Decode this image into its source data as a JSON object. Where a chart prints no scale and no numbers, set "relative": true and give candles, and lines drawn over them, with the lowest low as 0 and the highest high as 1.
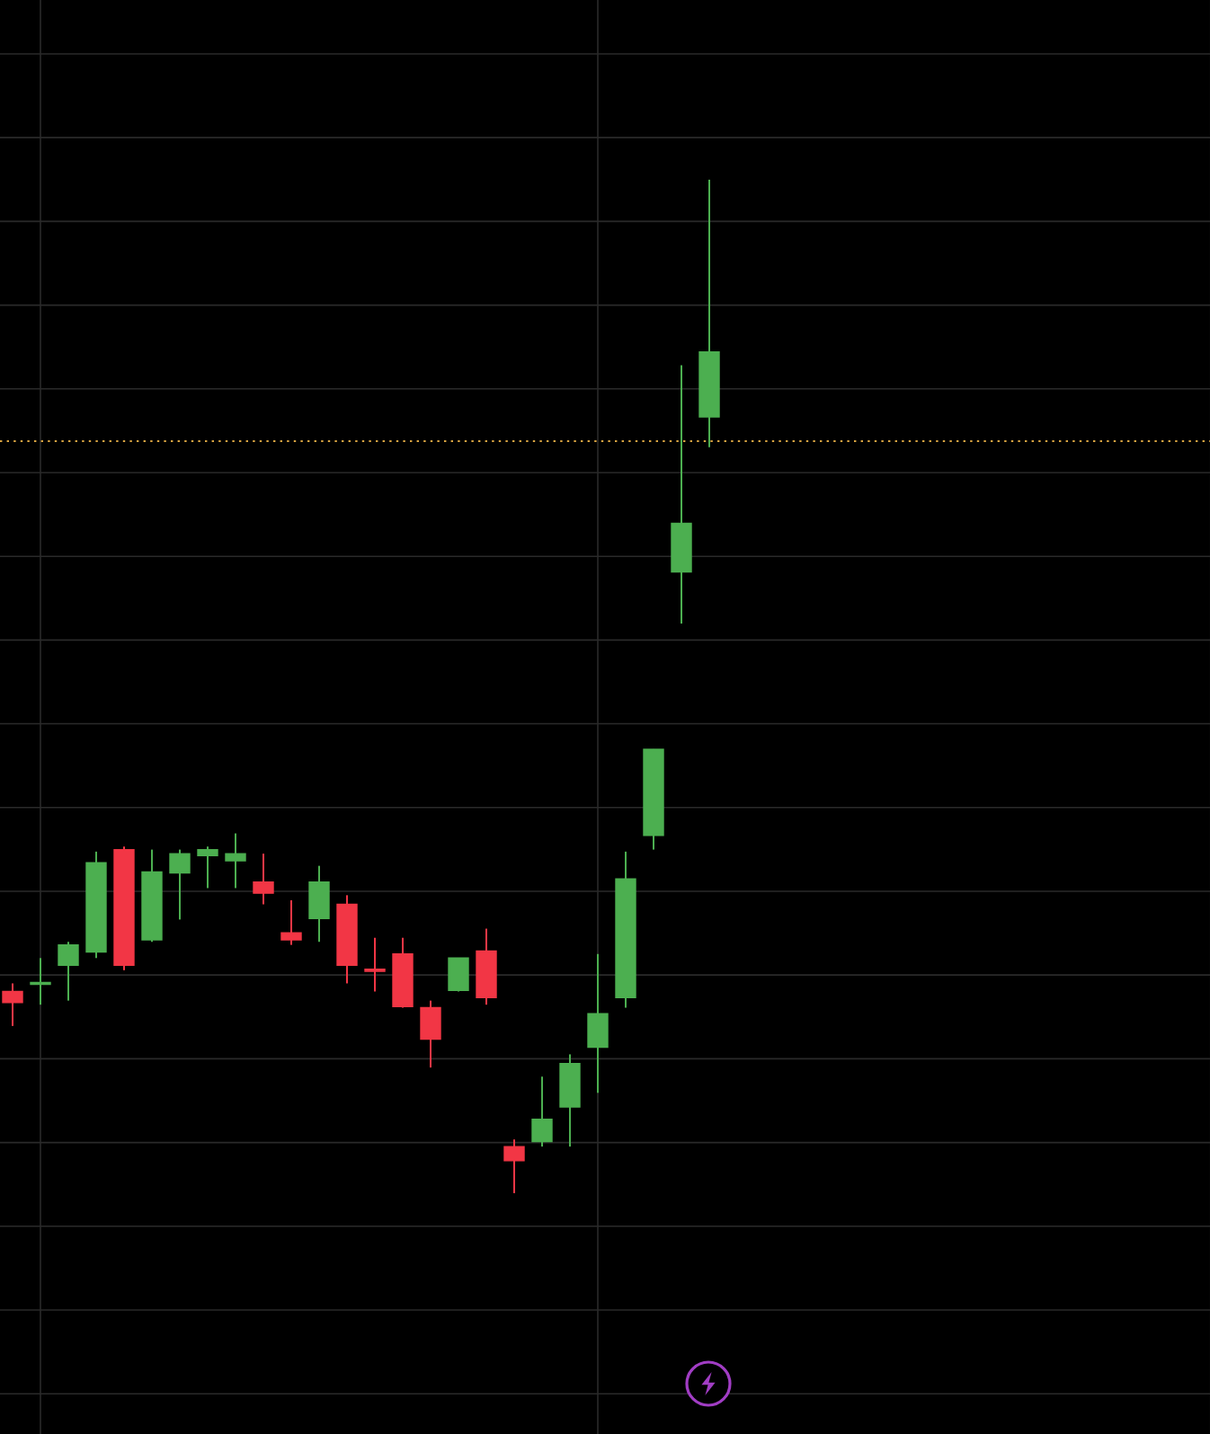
{
  "chart_data": {
    "type": "candlestick",
    "relative": true,
    "grid": true,
    "categories": [
      null,
      null,
      null,
      null,
      null,
      null,
      null,
      null,
      null,
      null,
      null,
      null,
      null,
      null,
      null,
      null,
      null,
      null,
      null,
      null,
      null,
      null,
      null,
      null,
      null,
      null
    ],
    "ohlc": [
      [
        0.199,
        0.207,
        0.165,
        0.188
      ],
      [
        0.206,
        0.232,
        0.186,
        0.208
      ],
      [
        0.225,
        0.248,
        0.19,
        0.245
      ],
      [
        0.238,
        0.337,
        0.232,
        0.326
      ],
      [
        0.339,
        0.342,
        0.22,
        0.225
      ],
      [
        0.25,
        0.339,
        0.248,
        0.317
      ],
      [
        0.316,
        0.339,
        0.27,
        0.335
      ],
      [
        0.333,
        0.342,
        0.301,
        0.339
      ],
      [
        0.328,
        0.355,
        0.301,
        0.335
      ],
      [
        0.307,
        0.335,
        0.285,
        0.296
      ],
      [
        0.257,
        0.289,
        0.245,
        0.25
      ],
      [
        0.271,
        0.323,
        0.248,
        0.307
      ],
      [
        0.285,
        0.294,
        0.207,
        0.225
      ],
      [
        0.221,
        0.252,
        0.199,
        0.219
      ],
      [
        0.236,
        0.252,
        0.183,
        0.184
      ],
      [
        0.183,
        0.19,
        0.124,
        0.152
      ],
      [
        0.2,
        0.232,
        0.199,
        0.232
      ],
      [
        0.239,
        0.261,
        0.186,
        0.193
      ],
      [
        0.046,
        0.053,
        0.0,
        0.032
      ],
      [
        0.051,
        0.115,
        0.046,
        0.073
      ],
      [
        0.085,
        0.137,
        0.046,
        0.128
      ],
      [
        0.144,
        0.236,
        0.099,
        0.177
      ],
      [
        0.193,
        0.337,
        0.183,
        0.31
      ],
      [
        0.353,
        0.438,
        0.339,
        0.438
      ],
      [
        0.613,
        0.817,
        0.562,
        0.661
      ],
      [
        0.766,
        1.0,
        0.736,
        0.83
      ]
    ],
    "colors": [
      "#f23645",
      "#4caf50",
      "#4caf50",
      "#4caf50",
      "#f23645",
      "#4caf50",
      "#4caf50",
      "#4caf50",
      "#4caf50",
      "#f23645",
      "#f23645",
      "#4caf50",
      "#f23645",
      "#f23645",
      "#f23645",
      "#f23645",
      "#4caf50",
      "#f23645",
      "#f23645",
      "#4caf50",
      "#4caf50",
      "#4caf50",
      "#4caf50",
      "#4caf50",
      "#4caf50",
      "#4caf50"
    ],
    "ref_lines": [
      {
        "axis": "y",
        "value": 0.742,
        "color": "#d9a441",
        "line_style": "dotted"
      }
    ]
  }
}
